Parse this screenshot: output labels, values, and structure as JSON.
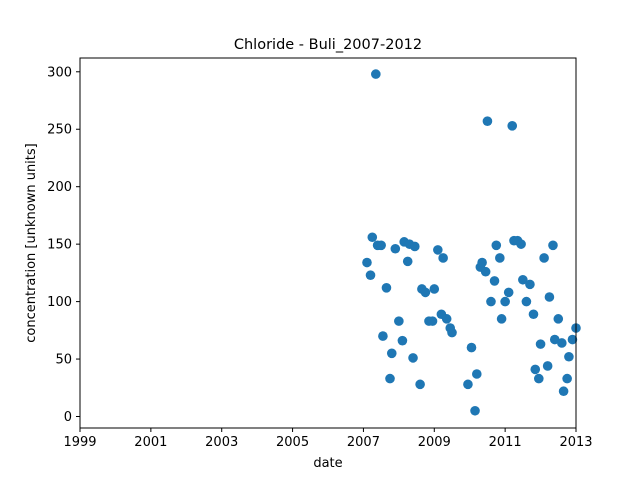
{
  "chart_data": {
    "type": "scatter",
    "title": "Chloride - Buli_2007-2012",
    "xlabel": "date",
    "ylabel": "concentration [unknown units]",
    "xlim": [
      1999,
      2013
    ],
    "ylim": [
      -10,
      312
    ],
    "xticks": [
      "1999",
      "2001",
      "2003",
      "2005",
      "2007",
      "2009",
      "2011",
      "2013"
    ],
    "yticks": [
      "0",
      "50",
      "100",
      "150",
      "200",
      "250",
      "300"
    ],
    "grid": false,
    "marker_color": "#1f77b4",
    "series": [
      {
        "points": [
          [
            2007.1,
            134
          ],
          [
            2007.2,
            123
          ],
          [
            2007.25,
            156
          ],
          [
            2007.35,
            298
          ],
          [
            2007.4,
            149
          ],
          [
            2007.5,
            149
          ],
          [
            2007.55,
            70
          ],
          [
            2007.65,
            112
          ],
          [
            2007.75,
            33
          ],
          [
            2007.8,
            55
          ],
          [
            2007.9,
            146
          ],
          [
            2008.0,
            83
          ],
          [
            2008.1,
            66
          ],
          [
            2008.15,
            152
          ],
          [
            2008.25,
            135
          ],
          [
            2008.3,
            150
          ],
          [
            2008.4,
            51
          ],
          [
            2008.45,
            148
          ],
          [
            2008.6,
            28
          ],
          [
            2008.65,
            111
          ],
          [
            2008.75,
            108
          ],
          [
            2008.85,
            83
          ],
          [
            2008.95,
            83
          ],
          [
            2009.0,
            111
          ],
          [
            2009.1,
            145
          ],
          [
            2009.2,
            89
          ],
          [
            2009.25,
            138
          ],
          [
            2009.35,
            85
          ],
          [
            2009.45,
            77
          ],
          [
            2009.5,
            73
          ],
          [
            2009.95,
            28
          ],
          [
            2010.05,
            60
          ],
          [
            2010.15,
            5
          ],
          [
            2010.2,
            37
          ],
          [
            2010.3,
            130
          ],
          [
            2010.35,
            134
          ],
          [
            2010.45,
            126
          ],
          [
            2010.5,
            257
          ],
          [
            2010.6,
            100
          ],
          [
            2010.7,
            118
          ],
          [
            2010.75,
            149
          ],
          [
            2010.85,
            138
          ],
          [
            2010.9,
            85
          ],
          [
            2011.0,
            100
          ],
          [
            2011.1,
            108
          ],
          [
            2011.2,
            253
          ],
          [
            2011.25,
            153
          ],
          [
            2011.35,
            153
          ],
          [
            2011.45,
            150
          ],
          [
            2011.5,
            119
          ],
          [
            2011.6,
            100
          ],
          [
            2011.7,
            115
          ],
          [
            2011.8,
            89
          ],
          [
            2011.85,
            41
          ],
          [
            2011.95,
            33
          ],
          [
            2012.0,
            63
          ],
          [
            2012.1,
            138
          ],
          [
            2012.2,
            44
          ],
          [
            2012.25,
            104
          ],
          [
            2012.35,
            149
          ],
          [
            2012.4,
            67
          ],
          [
            2012.5,
            85
          ],
          [
            2012.6,
            64
          ],
          [
            2012.65,
            22
          ],
          [
            2012.75,
            33
          ],
          [
            2012.8,
            52
          ],
          [
            2012.9,
            67
          ],
          [
            2013.0,
            77
          ]
        ]
      }
    ]
  }
}
